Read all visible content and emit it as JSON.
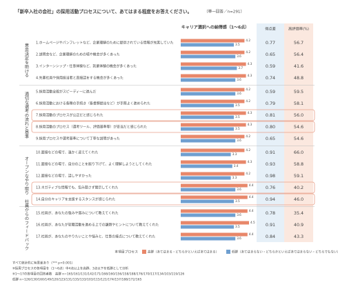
{
  "chart_data": {
    "type": "bar",
    "title": "「新卒入社の会社」の採用活動プロセスについて、あてはまる程度をお答えください。",
    "subtitle": "（単一回答／n=291）",
    "value_header": "キャリア選択への納得感（1〜6点）",
    "diff_header": "得点差",
    "rate_header": "高評価率(%)",
    "xlim": [
      0,
      5
    ],
    "legend_title": "本項目プロセス",
    "series": [
      {
        "name": "高群（あてはまる・どちらかといえばあてはまる）",
        "color": "#e8876a"
      },
      {
        "name": "低群（あてはまらない・どちらかといえばあてはまらない・どちらでもない）",
        "color": "#6f9fd0"
      }
    ],
    "groups": [
      {
        "name": "意思決定を助ける",
        "items": [
          {
            "label": "1.ホームページやパンフレットなど、企業理解のために提供されている情報が充実していた",
            "high": 4.2,
            "low": 3.5,
            "diff": 0.77,
            "rate": 56.7
          },
          {
            "label": "2.説明会など、企業理解のための場や機会が多くあった",
            "high": 4.2,
            "low": 3.6,
            "diff": 0.65,
            "rate": 56.4
          },
          {
            "label": "3.インターンシップ・仕事体験など、就業体験の機会が多くあった",
            "high": 4.3,
            "low": 3.7,
            "diff": 0.59,
            "rate": 41.6
          },
          {
            "label": "4.先輩社員や採用担当者と直接話をする機会が多くあった",
            "high": 4.3,
            "low": 3.6,
            "diff": 0.74,
            "rate": 48.8
          }
        ]
      },
      {
        "name": "適切な選考の流れと基準",
        "items": [
          {
            "label": "5.採用活動全般がスピーディーに進んだ",
            "high": 4.2,
            "low": 3.6,
            "diff": 0.59,
            "rate": 59.5
          },
          {
            "label": "6.採用活動における各種の手続き（各書類提出など）が手際よく進められた",
            "high": 4.2,
            "low": 3.5,
            "diff": 0.79,
            "rate": 58.1
          },
          {
            "label": "7.採用活動のプロセスが公正だと感じられた",
            "high": 4.3,
            "low": 3.5,
            "diff": 0.81,
            "rate": {
              "value": 56.0,
              "label": "56.0"
            },
            "highlight": true
          },
          {
            "label": "8.採用活動のプロセス（選考ツール、評価基準等）が妥当だと感じられた",
            "high": 4.3,
            "low": 3.5,
            "diff": {
              "value": 0.8,
              "label": "0.80"
            },
            "rate": 54.6,
            "highlight": true
          },
          {
            "label": "9.採用プロセスや選考基準について丁寧な説明があった",
            "high": 4.2,
            "low": 3.6,
            "diff": 0.65,
            "rate": 54.6
          }
        ]
      },
      {
        "name": "オープンなやり取り",
        "items": [
          {
            "label": "10.面接などの場で、温かく迎えてくれた",
            "high": 4.2,
            "low": 3.3,
            "diff": 0.91,
            "rate": {
              "value": 66.0,
              "label": "66.0"
            }
          },
          {
            "label": "11.面接などの場で、自分のことを掘り下げて、よく理解しようとしてくれた",
            "high": 4.3,
            "low": 3.4,
            "diff": 0.93,
            "rate": 58.8
          },
          {
            "label": "12.面接などの場で、話しやすかった",
            "high": 4.2,
            "low": 3.3,
            "diff": 0.98,
            "rate": 59.1
          },
          {
            "label": "13.ネガティブな情報でも、包み隠さず開示してくれた",
            "high": 4.4,
            "low": 3.6,
            "diff": 0.76,
            "rate": 40.2,
            "highlight": true
          },
          {
            "label": "14.自分のキャリアを支援するスタンスが感じられた",
            "high": 4.4,
            "low": 3.5,
            "diff": 0.94,
            "rate": {
              "value": 46.0,
              "label": "46.0"
            },
            "highlight": true
          }
        ]
      },
      {
        "name": "社員からのフィードバック",
        "items": [
          {
            "label": "15.社員が、あなたの強みや弱みについて教えてくれた",
            "high": 4.4,
            "low": 3.6,
            "diff": 0.78,
            "rate": 35.4
          },
          {
            "label": "16.社員が、あなたが就職活動を進める上での課題やヒントについて教えてくれた",
            "high": 4.5,
            "low": 3.5,
            "diff": 0.91,
            "rate": 40.9
          },
          {
            "label": "17.社員が、あなたのやりたいことや悩みと、仕事の接点について教えてくれた",
            "high": 4.4,
            "low": 3.6,
            "diff": 0.84,
            "rate": 43.3
          }
        ]
      }
    ],
    "notes": [
      "すべて統計的に有意差あり（*** p<0.001）",
      "※採用プロセスの各項目を（1〜6点）中4点以上を高群、3点以下を低群として分析",
      "※1〜17の各項目の回答者数　高群 n=165/161/131/142/171/168/160/156/158/188/176/170/117/134/103/119/126",
      "低群 n=126/130/160/149/120/123/131/135/133/103/115/121/174/157/188/172/165"
    ]
  }
}
